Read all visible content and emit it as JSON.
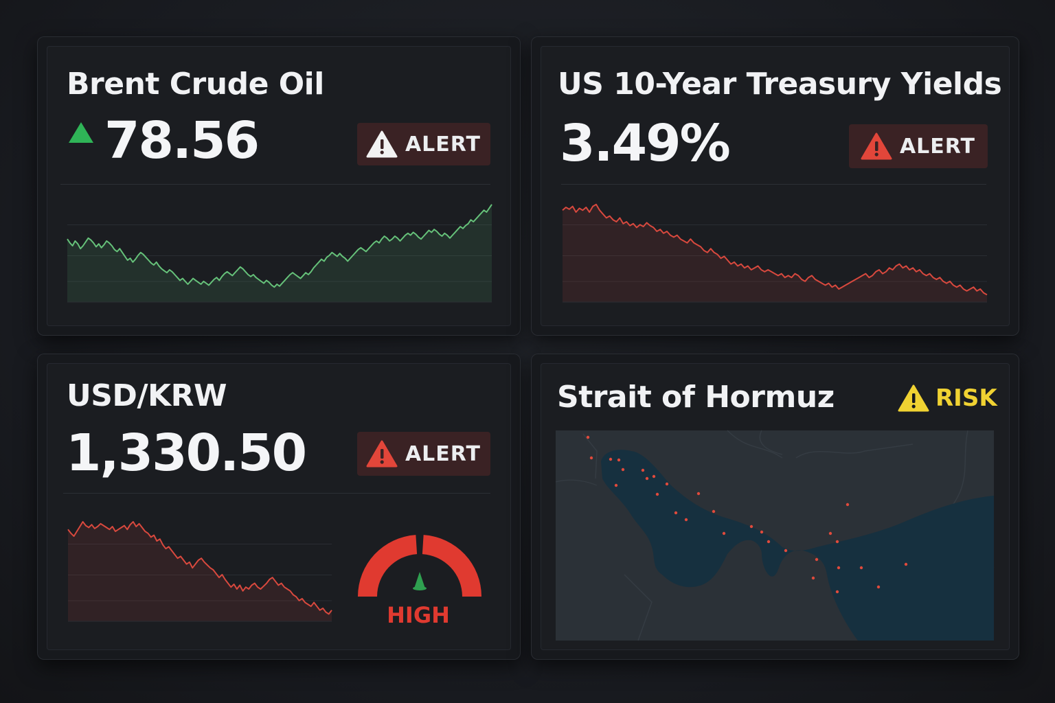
{
  "brent": {
    "title": "Brent Crude Oil",
    "value": "78.56",
    "alert_label": "ALERT",
    "trend": "up",
    "color": "#66c27a",
    "series": [
      62,
      58,
      55,
      60,
      57,
      52,
      55,
      59,
      63,
      61,
      58,
      54,
      57,
      53,
      56,
      60,
      58,
      55,
      51,
      49,
      52,
      48,
      44,
      40,
      42,
      38,
      41,
      45,
      48,
      46,
      43,
      40,
      37,
      35,
      38,
      34,
      31,
      29,
      27,
      30,
      28,
      25,
      22,
      19,
      21,
      18,
      15,
      18,
      21,
      19,
      17,
      15,
      18,
      16,
      14,
      17,
      20,
      22,
      19,
      23,
      26,
      28,
      26,
      24,
      27,
      30,
      33,
      31,
      28,
      25,
      23,
      25,
      22,
      20,
      18,
      16,
      19,
      17,
      14,
      12,
      15,
      13,
      16,
      19,
      22,
      25,
      27,
      25,
      23,
      21,
      24,
      27,
      25,
      28,
      32,
      35,
      38,
      41,
      39,
      43,
      45,
      48,
      46,
      44,
      47,
      44,
      42,
      39,
      42,
      45,
      48,
      51,
      53,
      51,
      49,
      52,
      55,
      58,
      60,
      58,
      62,
      65,
      63,
      60,
      62,
      65,
      63,
      60,
      63,
      66,
      68,
      66,
      69,
      67,
      64,
      62,
      65,
      68,
      71,
      69,
      72,
      70,
      67,
      65,
      68,
      66,
      63,
      66,
      69,
      72,
      75,
      73,
      76,
      78,
      82,
      80,
      83,
      86,
      89,
      92,
      90,
      94,
      98
    ]
  },
  "treasury": {
    "title": "US 10-Year Treasury Yields",
    "value": "3.49%",
    "alert_label": "ALERT",
    "color": "#d9493e",
    "series": [
      92,
      95,
      93,
      96,
      90,
      94,
      92,
      95,
      90,
      96,
      98,
      92,
      88,
      84,
      86,
      82,
      80,
      84,
      78,
      80,
      76,
      78,
      74,
      77,
      75,
      79,
      76,
      74,
      70,
      72,
      68,
      70,
      66,
      64,
      66,
      62,
      60,
      58,
      62,
      58,
      56,
      54,
      50,
      48,
      52,
      48,
      46,
      42,
      44,
      40,
      36,
      38,
      34,
      36,
      32,
      34,
      30,
      32,
      34,
      30,
      28,
      30,
      28,
      26,
      24,
      26,
      22,
      24,
      22,
      26,
      24,
      20,
      18,
      22,
      24,
      20,
      18,
      16,
      14,
      16,
      12,
      14,
      10,
      12,
      14,
      16,
      18,
      20,
      22,
      24,
      26,
      22,
      24,
      28,
      30,
      26,
      28,
      32,
      30,
      34,
      36,
      32,
      34,
      30,
      32,
      28,
      30,
      26,
      24,
      26,
      22,
      20,
      22,
      18,
      16,
      18,
      14,
      12,
      14,
      10,
      8,
      10,
      12,
      8,
      10,
      6,
      4
    ]
  },
  "usdkrw": {
    "title": "USD/KRW",
    "value": "1,330.50",
    "alert_label": "ALERT",
    "gauge_label": "HIGH",
    "gauge_level": 0.5,
    "color": "#d9493e",
    "series": [
      92,
      88,
      85,
      90,
      95,
      100,
      96,
      94,
      97,
      93,
      95,
      98,
      96,
      94,
      92,
      95,
      90,
      92,
      94,
      96,
      92,
      97,
      100,
      95,
      98,
      94,
      90,
      88,
      84,
      86,
      80,
      82,
      76,
      72,
      74,
      70,
      66,
      62,
      64,
      60,
      56,
      58,
      52,
      56,
      60,
      62,
      58,
      55,
      52,
      50,
      46,
      42,
      45,
      40,
      36,
      32,
      35,
      30,
      34,
      28,
      32,
      30,
      34,
      36,
      32,
      30,
      33,
      36,
      40,
      42,
      38,
      34,
      36,
      32,
      30,
      28,
      24,
      22,
      18,
      20,
      16,
      14,
      12,
      16,
      12,
      8,
      10,
      6,
      4,
      8
    ]
  },
  "hormuz": {
    "title": "Strait of Hormuz",
    "risk_label": "RISK",
    "risk_color": "#f0d232",
    "vessels": [
      [
        47,
        10
      ],
      [
        52,
        40
      ],
      [
        80,
        42
      ],
      [
        92,
        43
      ],
      [
        88,
        80
      ],
      [
        98,
        57
      ],
      [
        127,
        58
      ],
      [
        133,
        70
      ],
      [
        143,
        67
      ],
      [
        162,
        78
      ],
      [
        148,
        93
      ],
      [
        175,
        120
      ],
      [
        190,
        130
      ],
      [
        208,
        92
      ],
      [
        230,
        118
      ],
      [
        245,
        150
      ],
      [
        285,
        140
      ],
      [
        300,
        148
      ],
      [
        310,
        162
      ],
      [
        335,
        175
      ],
      [
        400,
        150
      ],
      [
        410,
        162
      ],
      [
        380,
        188
      ],
      [
        425,
        108
      ],
      [
        445,
        200
      ],
      [
        375,
        215
      ],
      [
        410,
        235
      ],
      [
        470,
        228
      ],
      [
        510,
        195
      ],
      [
        412,
        200
      ]
    ]
  }
}
